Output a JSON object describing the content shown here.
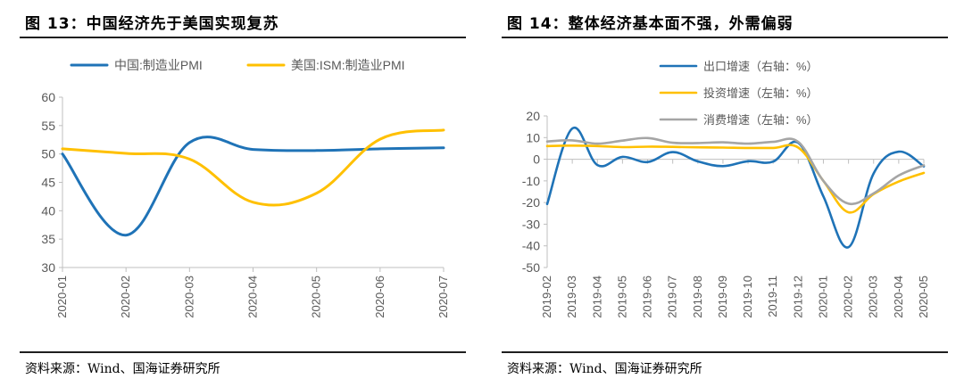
{
  "colors": {
    "blue": "#1F73B7",
    "yellow": "#FFC000",
    "gray": "#A5A5A5",
    "axis": "#BFBFBF",
    "text": "#595959"
  },
  "panels": [
    {
      "title": "图 13：中国经济先于美国实现复苏",
      "source": "资料来源：Wind、国海证券研究所"
    },
    {
      "title": "图 14：整体经济基本面不强，外需偏弱",
      "source": "资料来源：Wind、国海证券研究所"
    }
  ],
  "chart_data": [
    {
      "type": "line",
      "title": "",
      "categories": [
        "2020-01",
        "2020-02",
        "2020-03",
        "2020-04",
        "2020-05",
        "2020-06",
        "2020-07"
      ],
      "ylim": [
        30,
        60
      ],
      "yticks": [
        30,
        35,
        40,
        45,
        50,
        55,
        60
      ],
      "legend_position": "top",
      "series": [
        {
          "name": "中国:制造业PMI",
          "color": "#1F73B7",
          "values": [
            50.0,
            35.7,
            52.0,
            50.8,
            50.6,
            50.9,
            51.1
          ]
        },
        {
          "name": "美国:ISM:制造业PMI",
          "color": "#FFC000",
          "values": [
            50.9,
            50.1,
            49.1,
            41.5,
            43.1,
            52.6,
            54.2
          ]
        }
      ]
    },
    {
      "type": "line",
      "title": "",
      "categories": [
        "2019-02",
        "2019-03",
        "2019-04",
        "2019-05",
        "2019-06",
        "2019-07",
        "2019-08",
        "2019-09",
        "2019-10",
        "2019-11",
        "2019-12",
        "2020-01",
        "2020-02",
        "2020-03",
        "2020-04",
        "2020-05"
      ],
      "ylim": [
        -50,
        20
      ],
      "yticks": [
        -50,
        -40,
        -30,
        -20,
        -10,
        0,
        10,
        20
      ],
      "legend_position": "top-right",
      "series": [
        {
          "name": "出口增速（右轴：%）",
          "color": "#1F73B7",
          "values": [
            -20.7,
            14.2,
            -2.7,
            1.1,
            -1.3,
            3.3,
            -1.0,
            -3.2,
            -0.9,
            -1.1,
            7.6,
            -17.2,
            -40.6,
            -6.6,
            3.5,
            -3.3
          ]
        },
        {
          "name": "投资增速（左轴：%）",
          "color": "#FFC000",
          "values": [
            6.1,
            6.3,
            6.1,
            5.6,
            5.8,
            5.7,
            5.5,
            5.4,
            5.2,
            5.2,
            5.4,
            -10.0,
            -24.5,
            -16.1,
            -10.3,
            -6.3
          ]
        },
        {
          "name": "消费增速（左轴：%）",
          "color": "#A5A5A5",
          "values": [
            8.2,
            8.7,
            7.2,
            8.6,
            9.8,
            7.6,
            7.5,
            7.8,
            7.2,
            8.0,
            8.0,
            -10.0,
            -20.5,
            -15.8,
            -7.5,
            -2.8
          ]
        }
      ]
    }
  ]
}
